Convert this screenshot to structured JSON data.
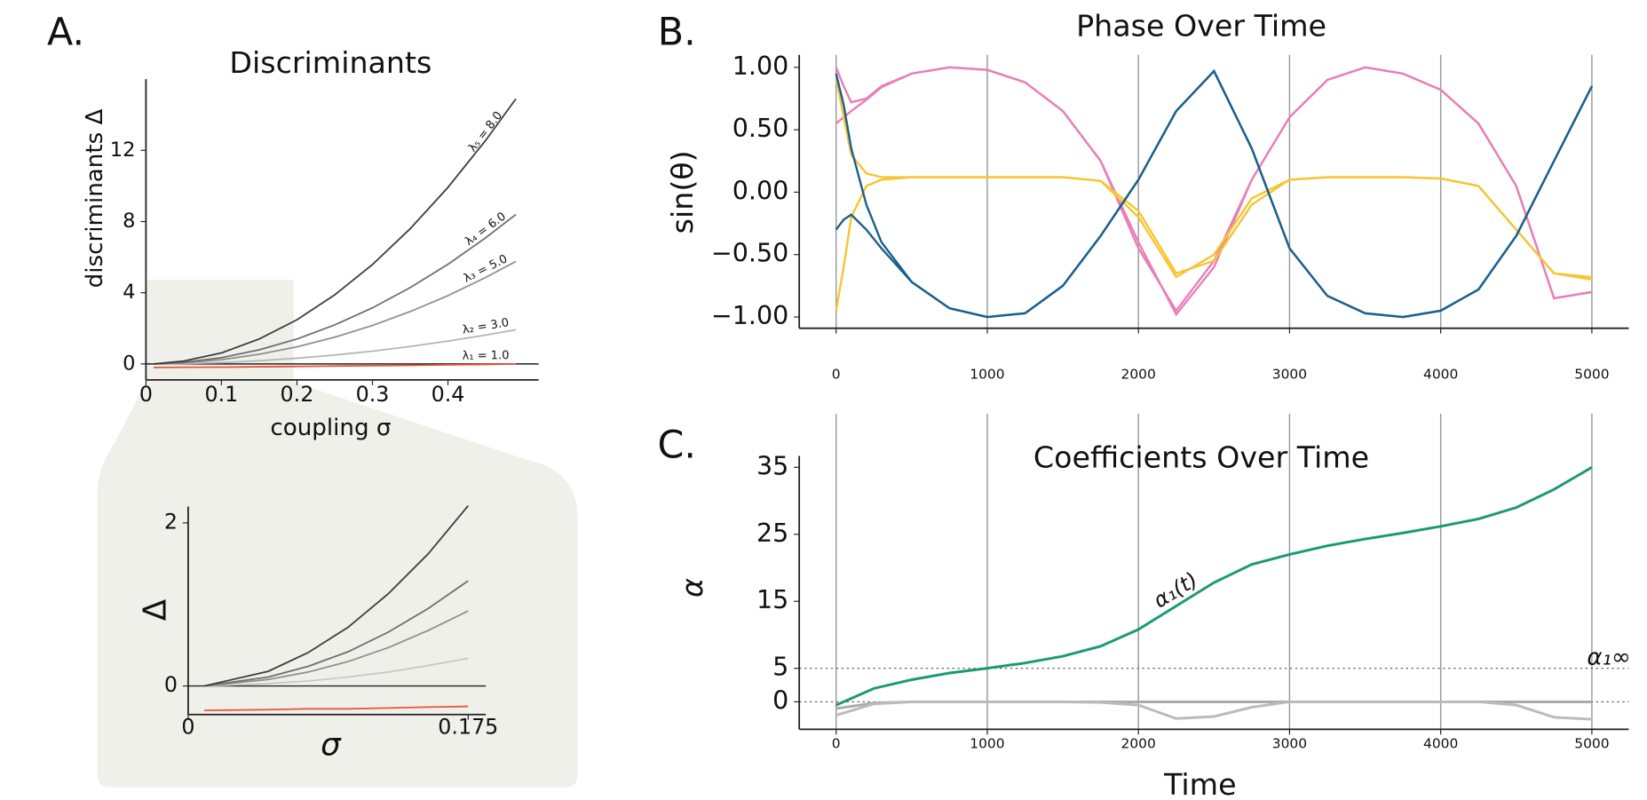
{
  "chart_data": [
    {
      "type": "line",
      "panel_label": "A.",
      "title": "Discriminants",
      "x_label": "coupling σ",
      "y_label": "discriminants Δ",
      "x": [
        0.01,
        0.05,
        0.1,
        0.15,
        0.2,
        0.25,
        0.3,
        0.35,
        0.4,
        0.45,
        0.49
      ],
      "series": [
        {
          "name": "λ₁ = 1.0",
          "color": "#e8553a",
          "values": [
            -0.2,
            -0.19,
            -0.18,
            -0.16,
            -0.14,
            -0.12,
            -0.1,
            -0.08,
            -0.05,
            -0.03,
            0
          ]
        },
        {
          "name": "λ₂ = 3.0",
          "color": "#b5b5b5",
          "values": [
            0,
            0.02,
            0.08,
            0.18,
            0.32,
            0.5,
            0.72,
            0.98,
            1.28,
            1.62,
            1.92
          ]
        },
        {
          "name": "λ₃ = 5.0",
          "color": "#8f8f8f",
          "values": [
            0,
            0.06,
            0.24,
            0.54,
            0.96,
            1.5,
            2.16,
            2.94,
            3.84,
            4.86,
            5.76
          ]
        },
        {
          "name": "λ₄ = 6.0",
          "color": "#6e6e6e",
          "values": [
            0,
            0.09,
            0.35,
            0.79,
            1.4,
            2.19,
            3.15,
            4.29,
            5.6,
            7.09,
            8.4
          ]
        },
        {
          "name": "λ₅ = 8.0",
          "color": "#3d3d3d",
          "values": [
            0,
            0.16,
            0.62,
            1.4,
            2.48,
            3.88,
            5.58,
            7.6,
            9.92,
            12.56,
            14.89
          ]
        }
      ],
      "xlim": [
        0,
        0.52
      ],
      "ylim": [
        -0.9,
        16
      ],
      "xticks": [
        0,
        0.1,
        0.2,
        0.3,
        0.4
      ],
      "yticks": [
        0,
        4,
        8,
        12
      ],
      "zero_line": true
    },
    {
      "type": "line",
      "x_label": "σ",
      "y_label": "Δ",
      "x": [
        0.01,
        0.05,
        0.075,
        0.1,
        0.125,
        0.15,
        0.175
      ],
      "series": [
        {
          "color": "#e8553a",
          "values": [
            -0.3,
            -0.29,
            -0.28,
            -0.28,
            -0.27,
            -0.26,
            -0.25
          ]
        },
        {
          "color": "#c8c8c8",
          "values": [
            0,
            0.03,
            0.06,
            0.11,
            0.17,
            0.25,
            0.34
          ]
        },
        {
          "color": "#8f8f8f",
          "values": [
            0,
            0.08,
            0.17,
            0.3,
            0.47,
            0.68,
            0.92
          ]
        },
        {
          "color": "#6e6e6e",
          "values": [
            0,
            0.11,
            0.24,
            0.42,
            0.66,
            0.95,
            1.29
          ]
        },
        {
          "color": "#3d3d3d",
          "values": [
            0,
            0.18,
            0.41,
            0.72,
            1.13,
            1.62,
            2.21
          ]
        }
      ],
      "xlim": [
        0,
        0.186
      ],
      "ylim": [
        -0.35,
        2.2
      ],
      "xticks": [
        0,
        0.175
      ],
      "yticks": [
        0,
        2
      ],
      "zero_line": true
    },
    {
      "type": "line",
      "panel_label": "B.",
      "title": "Phase Over Time",
      "y_label": "sin(θ)",
      "x": [
        0,
        50,
        100,
        200,
        300,
        500,
        750,
        1000,
        1250,
        1500,
        1750,
        2000,
        2250,
        2500,
        2750,
        3000,
        3250,
        3500,
        3750,
        4000,
        4250,
        4500,
        4750,
        5000
      ],
      "series": [
        {
          "color": "#e87fb8",
          "values": [
            1.0,
            0.85,
            0.72,
            0.75,
            0.85,
            0.95,
            1.0,
            0.98,
            0.88,
            0.65,
            0.25,
            -0.4,
            -0.98,
            -0.6,
            0.1,
            0.6,
            0.9,
            1.0,
            0.95,
            0.82,
            0.55,
            0.05,
            -0.85,
            -0.8
          ]
        },
        {
          "color": "#e87fb8",
          "values": [
            0.55,
            0.6,
            0.65,
            0.74,
            0.84,
            0.95,
            1.0,
            0.98,
            0.88,
            0.65,
            0.25,
            -0.45,
            -0.95,
            -0.55,
            0.1,
            0.6,
            0.9,
            1.0,
            0.95,
            0.82,
            0.55,
            0.05,
            -0.85,
            -0.8
          ]
        },
        {
          "color": "#f7c531",
          "values": [
            0.92,
            0.6,
            0.3,
            0.15,
            0.12,
            0.12,
            0.12,
            0.12,
            0.12,
            0.12,
            0.09,
            -0.15,
            -0.65,
            -0.55,
            -0.1,
            0.1,
            0.12,
            0.12,
            0.12,
            0.11,
            0.05,
            -0.3,
            -0.65,
            -0.7
          ]
        },
        {
          "color": "#f7c531",
          "values": [
            -0.95,
            -0.6,
            -0.2,
            0.05,
            0.1,
            0.12,
            0.12,
            0.12,
            0.12,
            0.12,
            0.09,
            -0.2,
            -0.68,
            -0.5,
            -0.05,
            0.1,
            0.12,
            0.12,
            0.12,
            0.11,
            0.05,
            -0.3,
            -0.65,
            -0.68
          ]
        },
        {
          "color": "#1a5f8c",
          "values": [
            0.95,
            0.7,
            0.35,
            -0.1,
            -0.4,
            -0.72,
            -0.93,
            -1.0,
            -0.97,
            -0.75,
            -0.35,
            0.1,
            0.65,
            0.97,
            0.35,
            -0.45,
            -0.83,
            -0.97,
            -1.0,
            -0.95,
            -0.78,
            -0.35,
            0.25,
            0.85
          ]
        },
        {
          "color": "#1a5f8c",
          "values": [
            -0.3,
            -0.22,
            -0.18,
            -0.3,
            -0.45,
            -0.72,
            -0.93,
            -1.0,
            -0.97,
            -0.75,
            -0.35,
            0.1,
            0.65,
            0.97,
            0.35,
            -0.45,
            -0.83,
            -0.97,
            -1.0,
            -0.95,
            -0.78,
            -0.35,
            0.25,
            0.85
          ]
        }
      ],
      "xlim": [
        -244,
        5244
      ],
      "ylim": [
        -1.09,
        1.1
      ],
      "xticks": [
        0,
        1000,
        2000,
        3000,
        4000,
        5000
      ],
      "yticks": [
        {
          "value": 1,
          "label": "1.00"
        },
        {
          "value": 0.5,
          "label": "0.50"
        },
        {
          "value": 0,
          "label": "0.00"
        },
        {
          "value": -0.5,
          "label": "−0.50"
        },
        {
          "value": -1,
          "label": "−1.00"
        }
      ],
      "grid": "x"
    },
    {
      "type": "line",
      "panel_label": "C.",
      "title": "Coefficients Over Time",
      "x_label": "Time",
      "y_label": "α",
      "x": [
        0,
        250,
        500,
        750,
        1000,
        1250,
        1500,
        1750,
        2000,
        2250,
        2500,
        2750,
        3000,
        3250,
        3500,
        3750,
        4000,
        4250,
        4500,
        4750,
        5000
      ],
      "series": [
        {
          "name": "α₁(t)",
          "color": "#1a9a73",
          "values": [
            -0.5,
            2,
            3.3,
            4.3,
            5,
            5.8,
            6.8,
            8.3,
            10.8,
            14.3,
            17.8,
            20.5,
            22,
            23.3,
            24.3,
            25.2,
            26.2,
            27.3,
            29,
            31.7,
            35
          ]
        },
        {
          "color": "#aaaaaa",
          "values": [
            -1,
            -0.2,
            0,
            0,
            0,
            0,
            0,
            0,
            0,
            0,
            0,
            0,
            0,
            0,
            0,
            0,
            0,
            0,
            0,
            0,
            0
          ]
        },
        {
          "color": "#bbbbbb",
          "values": [
            -2,
            -0.3,
            0,
            0,
            0,
            0,
            0,
            -0.1,
            -0.5,
            -2.5,
            -2.2,
            -0.8,
            0,
            0,
            0,
            0,
            0,
            0,
            -0.5,
            -2.3,
            -2.6
          ]
        }
      ],
      "reference_lines": [
        {
          "value": 5,
          "label": "α₁∞"
        },
        {
          "value": 0
        }
      ],
      "xlim": [
        -244,
        5244
      ],
      "ylim": [
        -4.1,
        36.7
      ],
      "xticks": [
        0,
        1000,
        2000,
        3000,
        4000,
        5000
      ],
      "yticks": [
        0,
        5,
        15,
        25,
        35
      ],
      "grid": "x"
    }
  ]
}
